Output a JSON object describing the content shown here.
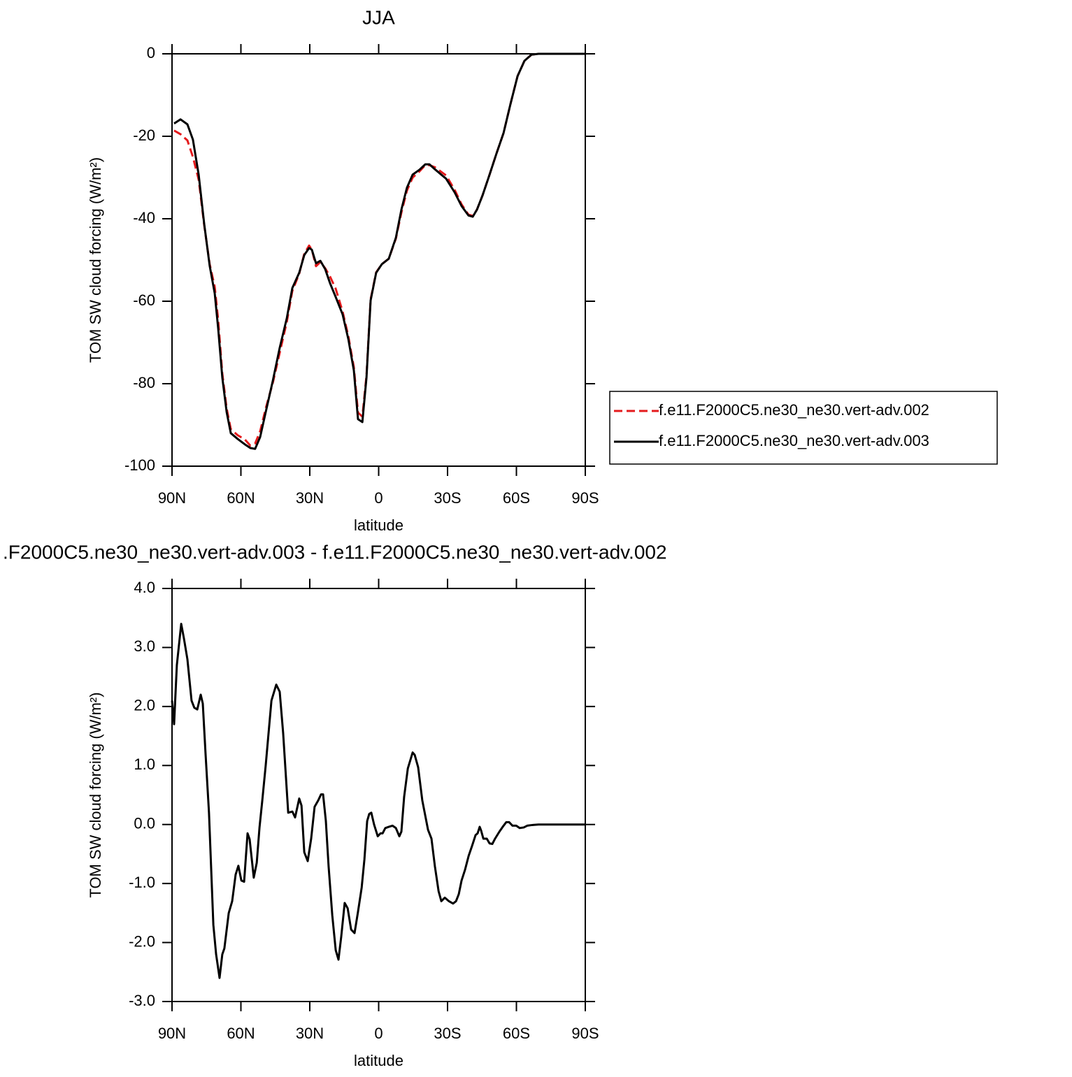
{
  "chart_data": [
    {
      "type": "line",
      "title": "JJA",
      "x_label": "latitude",
      "y_label": "TOM SW cloud forcing (W/m²)",
      "x": [
        89.1,
        86.3,
        83.3,
        80.9,
        78.4,
        76.0,
        73.6,
        71.4,
        69.9,
        68.1,
        66.2,
        64.4,
        61.4,
        58.3,
        55.9,
        53.8,
        51.6,
        49.2,
        46.1,
        43.1,
        40.0,
        37.6,
        34.6,
        32.4,
        30.3,
        29.1,
        27.3,
        25.4,
        23.3,
        21.2,
        18.7,
        15.7,
        13.2,
        10.8,
        9.0,
        7.1,
        5.3,
        3.5,
        1.1,
        -1.4,
        -4.4,
        -7.5,
        -9.9,
        -12.3,
        -14.8,
        -17.8,
        -20.3,
        -22.1,
        -24.5,
        -29.4,
        -33.1,
        -36.1,
        -39.1,
        -41.0,
        -42.8,
        -45.2,
        -48.3,
        -51.3,
        -54.4,
        -57.4,
        -60.5,
        -63.5,
        -66.6,
        -69.6,
        -90.0
      ],
      "series": [
        {
          "name": "f.e11.F2000C5.ne30_ne30.vert-adv.002",
          "color": "#e41a1c",
          "dashed": true,
          "values": [
            -18.6,
            -19.5,
            -21.0,
            -25.0,
            -30.5,
            -41.5,
            -51.0,
            -56.5,
            -64.5,
            -77.5,
            -86.0,
            -91.0,
            -92.5,
            -93.5,
            -95.0,
            -94.5,
            -91.5,
            -86.0,
            -79.8,
            -72.5,
            -65.0,
            -57.5,
            -53.3,
            -48.5,
            -46.5,
            -47.5,
            -51.5,
            -50.5,
            -52.0,
            -54.0,
            -57.0,
            -62.5,
            -68.5,
            -76.0,
            -87.0,
            -88.0,
            -78.0,
            -59.5,
            -53.0,
            -51.0,
            -49.7,
            -44.8,
            -38.5,
            -33.2,
            -30.0,
            -28.5,
            -27.0,
            -27.0,
            -27.5,
            -29.5,
            -33.0,
            -36.5,
            -39.0,
            -39.3,
            -37.8,
            -34.4,
            -29.3,
            -24.2,
            -19.2,
            -12.2,
            -5.4,
            -1.7,
            -0.2,
            0,
            0
          ]
        },
        {
          "name": "f.e11.F2000C5.ne30_ne30.vert-adv.003",
          "color": "#000000",
          "dashed": false,
          "values": [
            -16.9,
            -15.9,
            -17.1,
            -20.8,
            -29.3,
            -41.2,
            -51.4,
            -58.1,
            -66.6,
            -78.5,
            -86.9,
            -92.0,
            -93.4,
            -94.7,
            -95.6,
            -95.8,
            -92.9,
            -86.9,
            -79.3,
            -71.3,
            -64.1,
            -56.8,
            -53.1,
            -48.8,
            -47.1,
            -47.5,
            -50.8,
            -50.2,
            -52.2,
            -55.6,
            -59.0,
            -63.2,
            -69.2,
            -76.8,
            -88.6,
            -89.3,
            -78.5,
            -59.8,
            -53.1,
            -51.0,
            -49.7,
            -44.6,
            -37.8,
            -32.5,
            -29.3,
            -28.1,
            -26.8,
            -26.8,
            -28.0,
            -30.3,
            -33.6,
            -36.9,
            -39.2,
            -39.5,
            -37.8,
            -34.4,
            -29.3,
            -24.2,
            -19.2,
            -12.2,
            -5.4,
            -1.7,
            -0.2,
            0,
            0
          ]
        }
      ],
      "xlim": [
        90,
        -90
      ],
      "xticks": [
        {
          "value": 90,
          "label": "90N"
        },
        {
          "value": 60,
          "label": "60N"
        },
        {
          "value": 30,
          "label": "30N"
        },
        0,
        {
          "value": -30,
          "label": "30S"
        },
        {
          "value": -60,
          "label": "60S"
        },
        {
          "value": -90,
          "label": "90S"
        }
      ],
      "ylim": [
        -100,
        0
      ],
      "yticks": [
        0,
        -20,
        -40,
        -60,
        -80,
        -100
      ],
      "legend": "right"
    },
    {
      "type": "line",
      "title": ".F2000C5.ne30_ne30.vert-adv.003 - f.e11.F2000C5.ne30_ne30.vert-adv.002",
      "x_label": "latitude",
      "y_label": "TOM SW cloud forcing (W/m²)",
      "x": [
        90.0,
        89.1,
        87.9,
        86.0,
        84.8,
        83.3,
        81.5,
        80.3,
        79.0,
        77.5,
        76.6,
        75.4,
        73.9,
        72.0,
        70.8,
        69.3,
        68.1,
        67.2,
        65.3,
        63.8,
        62.3,
        61.1,
        59.8,
        58.6,
        57.1,
        56.2,
        54.4,
        53.1,
        51.9,
        50.7,
        49.2,
        46.7,
        44.6,
        43.1,
        41.6,
        39.4,
        37.6,
        36.4,
        34.6,
        33.6,
        32.4,
        30.9,
        29.4,
        27.9,
        26.3,
        25.1,
        24.2,
        23.0,
        21.8,
        20.2,
        18.7,
        17.5,
        16.3,
        14.8,
        13.5,
        12.0,
        10.5,
        9.0,
        7.4,
        6.2,
        5.0,
        4.1,
        3.2,
        2.0,
        0.4,
        -0.8,
        -1.7,
        -2.9,
        -4.4,
        -6.0,
        -7.5,
        -9.0,
        -9.9,
        -11.1,
        -12.7,
        -14.8,
        -15.7,
        -17.2,
        -19.0,
        -21.5,
        -23.0,
        -24.5,
        -26.1,
        -27.3,
        -28.8,
        -30.6,
        -32.4,
        -33.7,
        -34.9,
        -36.1,
        -37.6,
        -39.2,
        -40.7,
        -42.2,
        -43.1,
        -44.0,
        -44.6,
        -45.6,
        -47.1,
        -48.3,
        -49.5,
        -50.7,
        -52.6,
        -54.4,
        -55.6,
        -56.8,
        -58.3,
        -59.9,
        -61.4,
        -63.2,
        -64.7,
        -66.6,
        -69.6,
        -75.7,
        -90.0
      ],
      "values": [
        2.1,
        1.7,
        2.7,
        3.4,
        3.15,
        2.8,
        2.1,
        1.98,
        1.95,
        2.2,
        2.05,
        1.2,
        0.2,
        -1.7,
        -2.2,
        -2.6,
        -2.2,
        -2.1,
        -1.5,
        -1.3,
        -0.85,
        -0.7,
        -0.95,
        -0.97,
        -0.15,
        -0.25,
        -0.9,
        -0.65,
        -0.05,
        0.4,
        1.0,
        2.1,
        2.37,
        2.25,
        1.55,
        0.2,
        0.22,
        0.12,
        0.44,
        0.32,
        -0.47,
        -0.62,
        -0.24,
        0.3,
        0.41,
        0.51,
        0.51,
        0.06,
        -0.71,
        -1.54,
        -2.13,
        -2.29,
        -1.9,
        -1.33,
        -1.42,
        -1.78,
        -1.84,
        -1.48,
        -1.07,
        -0.59,
        0.06,
        0.18,
        0.2,
        0,
        -0.2,
        -0.15,
        -0.15,
        -0.06,
        -0.04,
        -0.02,
        -0.06,
        -0.2,
        -0.12,
        0.47,
        0.95,
        1.22,
        1.18,
        0.97,
        0.41,
        -0.09,
        -0.24,
        -0.71,
        -1.13,
        -1.3,
        -1.24,
        -1.3,
        -1.34,
        -1.3,
        -1.18,
        -0.95,
        -0.77,
        -0.53,
        -0.36,
        -0.18,
        -0.15,
        -0.04,
        -0.1,
        -0.24,
        -0.24,
        -0.32,
        -0.33,
        -0.24,
        -0.12,
        -0.02,
        0.04,
        0.04,
        -0.02,
        -0.02,
        -0.06,
        -0.05,
        -0.02,
        -0.01,
        0,
        0,
        0
      ],
      "color": "#000000",
      "xlim": [
        90,
        -90
      ],
      "xticks": [
        {
          "value": 90,
          "label": "90N"
        },
        {
          "value": 60,
          "label": "60N"
        },
        {
          "value": 30,
          "label": "30N"
        },
        0,
        {
          "value": -30,
          "label": "30S"
        },
        {
          "value": -60,
          "label": "60S"
        },
        {
          "value": -90,
          "label": "90S"
        }
      ],
      "ylim": [
        -3,
        4
      ],
      "yticks": [
        {
          "value": 4,
          "label": "4.0"
        },
        {
          "value": 3,
          "label": "3.0"
        },
        {
          "value": 2,
          "label": "2.0"
        },
        {
          "value": 1,
          "label": "1.0"
        },
        {
          "value": 0,
          "label": "0.0"
        },
        {
          "value": -1,
          "label": "-1.0"
        },
        {
          "value": -2,
          "label": "-2.0"
        },
        {
          "value": -3,
          "label": "-3.0"
        }
      ]
    }
  ]
}
